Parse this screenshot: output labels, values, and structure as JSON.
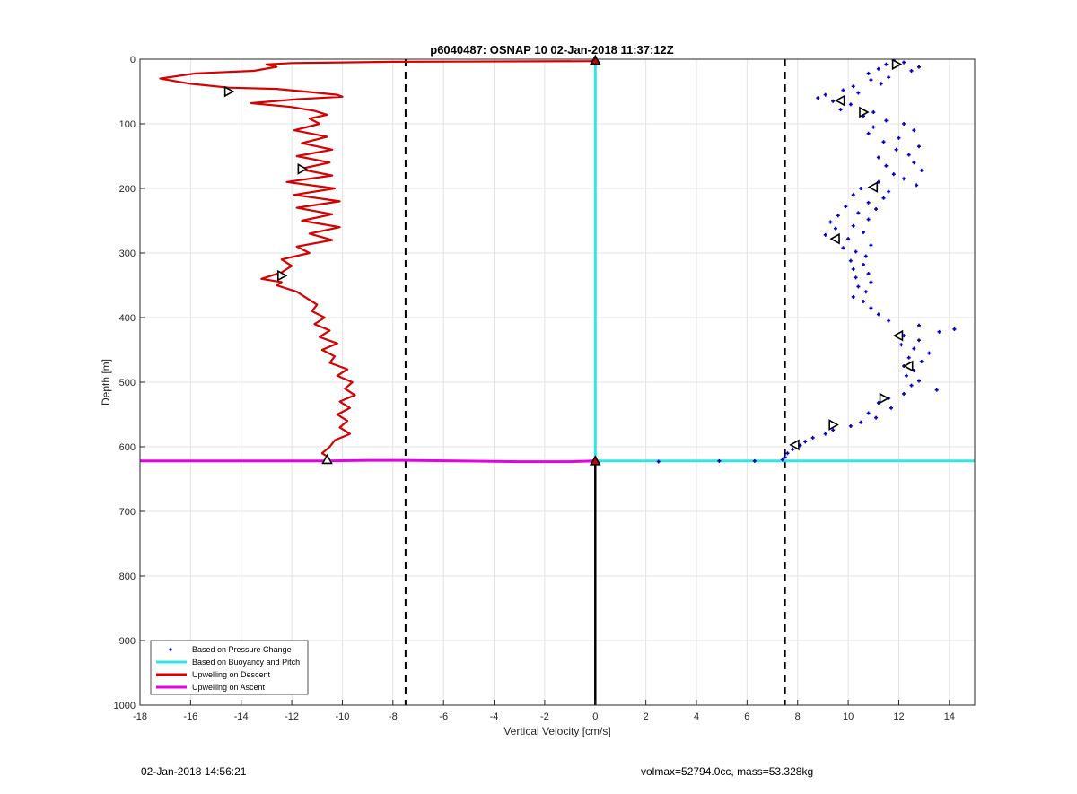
{
  "footer": {
    "timestamp": "02-Jan-2018 14:56:21",
    "info": "volmax=52794.0cc, mass=53.328kg"
  },
  "chart_data": {
    "type": "line",
    "title": "p6040487: OSNAP 10 02-Jan-2018 11:37:12Z",
    "xlabel": "Vertical Velocity [cm/s]",
    "ylabel": "Depth [m]",
    "xlim": [
      -18,
      15
    ],
    "ylim": [
      0,
      1000
    ],
    "y_reversed": true,
    "grid": true,
    "xticks": [
      -18,
      -16,
      -14,
      -12,
      -10,
      -8,
      -6,
      -4,
      -2,
      0,
      2,
      4,
      6,
      8,
      10,
      12,
      14
    ],
    "yticks": [
      0,
      100,
      200,
      300,
      400,
      500,
      600,
      700,
      800,
      900,
      1000
    ],
    "legend_position": "bottom-left",
    "colors": {
      "pressure": "#0000cc",
      "buoyancy": "#33e6e6",
      "descent": "#d60000",
      "ascent": "#e600e6",
      "reference": "#000000",
      "grid": "#e3e3e3"
    },
    "legend": [
      {
        "label": "Based on Pressure Change",
        "kind": "dot",
        "color": "#0000cc"
      },
      {
        "label": "Based on Buoyancy and Pitch",
        "kind": "line",
        "color": "#33e6e6"
      },
      {
        "label": "Upwelling on Descent",
        "kind": "line",
        "color": "#d60000"
      },
      {
        "label": "Upwelling on Ascent",
        "kind": "line",
        "color": "#e600e6"
      }
    ],
    "reference_lines": {
      "dashed_x": [
        -7.5,
        7.5
      ],
      "zero_line_depth_range": [
        622,
        1000
      ]
    },
    "series": [
      {
        "name": "Upwelling on Descent",
        "color": "#d60000",
        "points": [
          [
            0,
            3
          ],
          [
            -8,
            4
          ],
          [
            -12,
            6
          ],
          [
            -13,
            8
          ],
          [
            -12.6,
            12
          ],
          [
            -13.5,
            18
          ],
          [
            -15.8,
            22
          ],
          [
            -17.2,
            30
          ],
          [
            -16,
            38
          ],
          [
            -14.5,
            44
          ],
          [
            -12.6,
            46
          ],
          [
            -11.5,
            50
          ],
          [
            -10.2,
            55
          ],
          [
            -10,
            58
          ],
          [
            -11.8,
            62
          ],
          [
            -13.6,
            68
          ],
          [
            -12,
            74
          ],
          [
            -11.1,
            80
          ],
          [
            -10.6,
            86
          ],
          [
            -11.3,
            92
          ],
          [
            -10.9,
            100
          ],
          [
            -11.9,
            110
          ],
          [
            -10.6,
            120
          ],
          [
            -11.6,
            130
          ],
          [
            -10.4,
            140
          ],
          [
            -11.8,
            150
          ],
          [
            -10.5,
            160
          ],
          [
            -11.7,
            170
          ],
          [
            -10.4,
            180
          ],
          [
            -12.2,
            190
          ],
          [
            -10.3,
            200
          ],
          [
            -11.9,
            210
          ],
          [
            -10.1,
            220
          ],
          [
            -11.8,
            230
          ],
          [
            -10.4,
            240
          ],
          [
            -11.6,
            250
          ],
          [
            -10.1,
            260
          ],
          [
            -11.3,
            270
          ],
          [
            -10.4,
            280
          ],
          [
            -11.8,
            290
          ],
          [
            -11.3,
            300
          ],
          [
            -12.4,
            310
          ],
          [
            -12,
            320
          ],
          [
            -12.4,
            330
          ],
          [
            -13.2,
            340
          ],
          [
            -12.4,
            345
          ],
          [
            -12.6,
            350
          ],
          [
            -11.8,
            360
          ],
          [
            -11.4,
            370
          ],
          [
            -11,
            380
          ],
          [
            -11.2,
            390
          ],
          [
            -10.7,
            400
          ],
          [
            -11.1,
            410
          ],
          [
            -10.5,
            420
          ],
          [
            -10.9,
            430
          ],
          [
            -10.2,
            440
          ],
          [
            -10.8,
            450
          ],
          [
            -10.3,
            460
          ],
          [
            -10.5,
            470
          ],
          [
            -9.8,
            480
          ],
          [
            -10.2,
            490
          ],
          [
            -9.6,
            500
          ],
          [
            -9.9,
            510
          ],
          [
            -9.5,
            520
          ],
          [
            -10.1,
            530
          ],
          [
            -9.7,
            540
          ],
          [
            -10.2,
            550
          ],
          [
            -9.8,
            560
          ],
          [
            -10.1,
            570
          ],
          [
            -9.7,
            580
          ],
          [
            -10.3,
            590
          ],
          [
            -10.5,
            600
          ],
          [
            -10.8,
            610
          ],
          [
            -10.6,
            615
          ],
          [
            -10.6,
            620
          ]
        ]
      },
      {
        "name": "Upwelling on Ascent",
        "color": "#e600e6",
        "points": [
          [
            -18,
            622
          ],
          [
            -10.6,
            622
          ],
          [
            -9,
            621
          ],
          [
            -7.5,
            621
          ],
          [
            -5.5,
            622
          ],
          [
            -3,
            623
          ],
          [
            -1,
            623
          ],
          [
            0,
            622
          ]
        ]
      },
      {
        "name": "Based on Buoyancy and Pitch",
        "color": "#33e6e6",
        "points": [
          [
            0,
            2
          ],
          [
            0,
            622
          ],
          [
            8,
            622
          ],
          [
            15,
            622
          ]
        ]
      },
      {
        "name": "Based on Pressure Change",
        "color": "#0000cc",
        "kind": "scatter",
        "points": [
          [
            11.8,
            2
          ],
          [
            12.2,
            5
          ],
          [
            11.5,
            8
          ],
          [
            12.8,
            12
          ],
          [
            11.2,
            15
          ],
          [
            12.5,
            18
          ],
          [
            10.8,
            22
          ],
          [
            11.6,
            28
          ],
          [
            10.9,
            32
          ],
          [
            11.3,
            38
          ],
          [
            10.2,
            42
          ],
          [
            9.8,
            48
          ],
          [
            10.4,
            52
          ],
          [
            9.1,
            55
          ],
          [
            8.8,
            60
          ],
          [
            9.4,
            65
          ],
          [
            10.1,
            70
          ],
          [
            9.7,
            78
          ],
          [
            11,
            82
          ],
          [
            10.6,
            88
          ],
          [
            11.5,
            95
          ],
          [
            12.2,
            100
          ],
          [
            11,
            105
          ],
          [
            12.6,
            110
          ],
          [
            10.8,
            115
          ],
          [
            12,
            122
          ],
          [
            11.4,
            128
          ],
          [
            12.8,
            135
          ],
          [
            11.9,
            140
          ],
          [
            12.4,
            148
          ],
          [
            11.2,
            152
          ],
          [
            12.6,
            160
          ],
          [
            11.5,
            165
          ],
          [
            12.9,
            172
          ],
          [
            11.8,
            178
          ],
          [
            12.2,
            185
          ],
          [
            11.2,
            190
          ],
          [
            12.7,
            195
          ],
          [
            10.5,
            200
          ],
          [
            11.6,
            205
          ],
          [
            10.2,
            210
          ],
          [
            11.4,
            215
          ],
          [
            10.8,
            222
          ],
          [
            9.9,
            228
          ],
          [
            11.1,
            232
          ],
          [
            10.4,
            238
          ],
          [
            9.6,
            242
          ],
          [
            10.8,
            248
          ],
          [
            9.3,
            252
          ],
          [
            10.2,
            258
          ],
          [
            9.5,
            262
          ],
          [
            10.6,
            268
          ],
          [
            9.1,
            272
          ],
          [
            10,
            278
          ],
          [
            9.6,
            282
          ],
          [
            10.9,
            288
          ],
          [
            9.8,
            292
          ],
          [
            10.3,
            298
          ],
          [
            10.7,
            305
          ],
          [
            10.1,
            312
          ],
          [
            10.6,
            318
          ],
          [
            10.2,
            325
          ],
          [
            10.8,
            332
          ],
          [
            10.3,
            338
          ],
          [
            10.9,
            345
          ],
          [
            10.4,
            352
          ],
          [
            10.7,
            360
          ],
          [
            10.2,
            368
          ],
          [
            10.6,
            375
          ],
          [
            10.9,
            385
          ],
          [
            11.2,
            395
          ],
          [
            11.6,
            405
          ],
          [
            12.8,
            412
          ],
          [
            14.2,
            418
          ],
          [
            13.6,
            422
          ],
          [
            12.2,
            428
          ],
          [
            12.8,
            435
          ],
          [
            12.1,
            442
          ],
          [
            12.6,
            448
          ],
          [
            13.2,
            455
          ],
          [
            12.4,
            462
          ],
          [
            12.9,
            468
          ],
          [
            12.2,
            475
          ],
          [
            12.6,
            482
          ],
          [
            12.3,
            490
          ],
          [
            12.8,
            498
          ],
          [
            12.5,
            505
          ],
          [
            13.5,
            512
          ],
          [
            12.2,
            518
          ],
          [
            11.6,
            525
          ],
          [
            11.2,
            532
          ],
          [
            11.7,
            540
          ],
          [
            10.8,
            548
          ],
          [
            11.1,
            555
          ],
          [
            10.5,
            562
          ],
          [
            10.1,
            568
          ],
          [
            9.4,
            574
          ],
          [
            9.1,
            580
          ],
          [
            8.6,
            586
          ],
          [
            8.3,
            592
          ],
          [
            8.1,
            598
          ],
          [
            7.8,
            604
          ],
          [
            7.6,
            610
          ],
          [
            7.5,
            616
          ],
          [
            7.4,
            620
          ],
          [
            6.3,
            622
          ],
          [
            4.9,
            622
          ],
          [
            2.5,
            623
          ]
        ]
      }
    ],
    "markers": [
      {
        "x": 0,
        "y": 2,
        "shape": "triangle-up",
        "color": "#d60000"
      },
      {
        "x": 0,
        "y": 622,
        "shape": "triangle-up",
        "color": "#d60000"
      },
      {
        "x": -10.6,
        "y": 620,
        "shape": "triangle-up",
        "color": "#000000"
      },
      {
        "x": -14.5,
        "y": 50,
        "shape": "triangle-right",
        "color": "#000000"
      },
      {
        "x": -11.6,
        "y": 170,
        "shape": "triangle-right",
        "color": "#000000"
      },
      {
        "x": -12.4,
        "y": 335,
        "shape": "triangle-right",
        "color": "#000000"
      },
      {
        "x": 11.9,
        "y": 8,
        "shape": "triangle-right",
        "color": "#000000"
      },
      {
        "x": 9.7,
        "y": 64,
        "shape": "triangle-left",
        "color": "#000000"
      },
      {
        "x": 10.6,
        "y": 82,
        "shape": "triangle-right",
        "color": "#000000"
      },
      {
        "x": 11,
        "y": 198,
        "shape": "triangle-left",
        "color": "#000000"
      },
      {
        "x": 9.5,
        "y": 278,
        "shape": "triangle-left",
        "color": "#000000"
      },
      {
        "x": 12,
        "y": 428,
        "shape": "triangle-left",
        "color": "#000000"
      },
      {
        "x": 12.4,
        "y": 475,
        "shape": "triangle-left",
        "color": "#000000"
      },
      {
        "x": 11.4,
        "y": 525,
        "shape": "triangle-right",
        "color": "#000000"
      },
      {
        "x": 9.4,
        "y": 566,
        "shape": "triangle-right",
        "color": "#000000"
      },
      {
        "x": 7.9,
        "y": 597,
        "shape": "triangle-left",
        "color": "#000000"
      }
    ]
  }
}
